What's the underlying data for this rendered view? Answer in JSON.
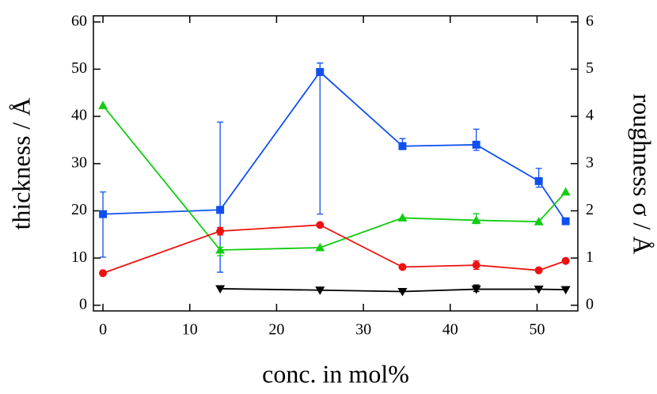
{
  "chart_data": {
    "type": "line",
    "xlabel": "conc. in mol%",
    "ylabel": "thickness / Å",
    "y2label": "roughness σ / Å",
    "xlim": [
      -1.1,
      54.7
    ],
    "xticks": [
      0,
      10,
      20,
      30,
      40,
      50
    ],
    "ylim": [
      -1.2,
      61.3
    ],
    "yticks": [
      0,
      10,
      20,
      30,
      40,
      50,
      60
    ],
    "y2lim": [
      -0.12,
      6.13
    ],
    "y2ticks": [
      0,
      1,
      2,
      3,
      4,
      5,
      6
    ],
    "series": [
      {
        "color": "#1050f0",
        "marker": "square",
        "x": [
          0,
          13.5,
          25,
          34.5,
          43,
          50.2,
          53.3
        ],
        "values": [
          19.3,
          20.2,
          49.4,
          33.7,
          34,
          26.3,
          17.8
        ],
        "err_minus": [
          9.1,
          13.2,
          30.1,
          0.7,
          1.2,
          1.3,
          null
        ],
        "err_plus": [
          4.7,
          18.6,
          1.9,
          1.6,
          3.3,
          2.7,
          null
        ]
      },
      {
        "color": "#11cc11",
        "marker": "triangle-up",
        "x": [
          0,
          13.5,
          25,
          34.5,
          43,
          50.2,
          53.3
        ],
        "values": [
          42.3,
          11.7,
          12.2,
          18.5,
          18,
          17.7,
          24
        ],
        "err_minus": [
          null,
          1.2,
          null,
          null,
          0.7,
          null,
          null
        ],
        "err_plus": [
          null,
          0.6,
          null,
          null,
          1.4,
          null,
          null
        ]
      },
      {
        "color": "#ee1111",
        "marker": "circle",
        "x": [
          0,
          13.5,
          25,
          34.5,
          43,
          50.2,
          53.3
        ],
        "values": [
          6.8,
          15.7,
          17,
          8.1,
          8.5,
          7.4,
          9.4
        ],
        "err_minus": [
          null,
          0.8,
          null,
          null,
          0.9,
          null,
          null
        ],
        "err_plus": [
          null,
          0.8,
          null,
          null,
          0.9,
          null,
          null
        ]
      },
      {
        "color": "#000000",
        "marker": "triangle-down",
        "x": [
          13.5,
          25,
          34.5,
          43,
          50.2,
          53.3
        ],
        "values": [
          3.5,
          3.2,
          2.9,
          3.4,
          3.4,
          3.3
        ],
        "err_minus": [
          null,
          null,
          null,
          0.5,
          null,
          null
        ],
        "err_plus": [
          null,
          null,
          null,
          0.9,
          null,
          null
        ]
      }
    ]
  }
}
